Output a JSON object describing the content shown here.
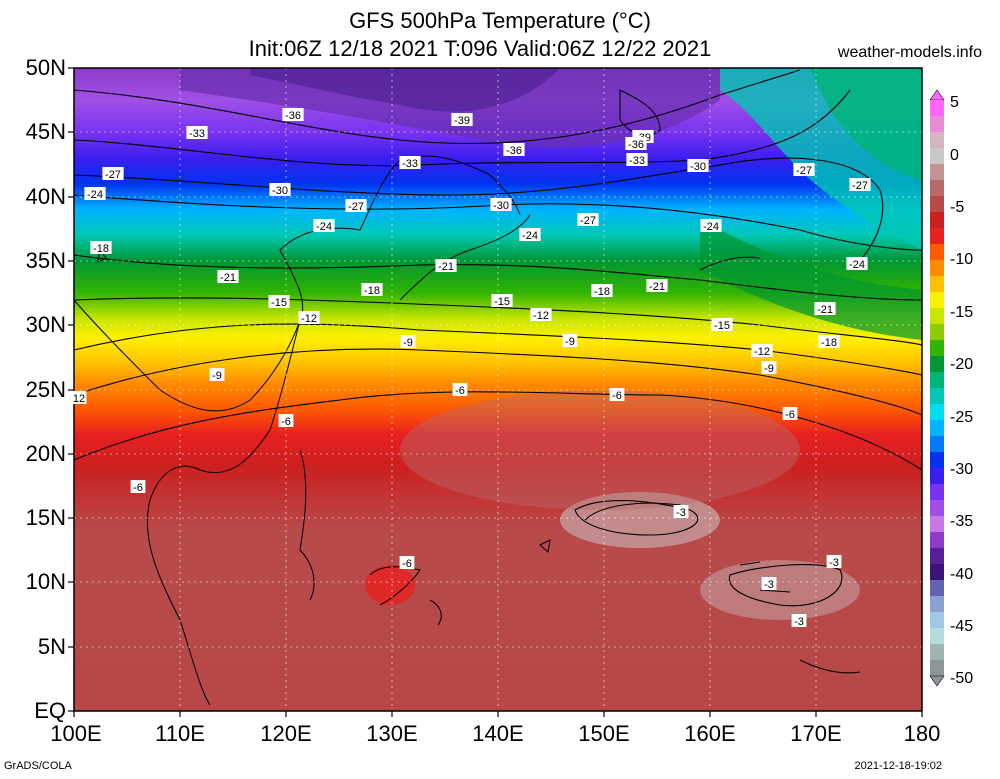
{
  "header": {
    "title": "GFS 500hPa Temperature (°C)",
    "subtitle": "Init:06Z 12/18 2021 T:096 Valid:06Z 12/22 2021",
    "site": "weather-models.info"
  },
  "footer": {
    "left": "GrADS/COLA",
    "right": "2021-12-18-19:02"
  },
  "map": {
    "region_lat": [
      "50N",
      "45N",
      "40N",
      "35N",
      "30N",
      "25N",
      "20N",
      "15N",
      "10N",
      "5N",
      "EQ"
    ],
    "region_lon": [
      "100E",
      "110E",
      "120E",
      "130E",
      "140E",
      "150E",
      "160E",
      "170E",
      "180"
    ]
  },
  "colorbar": {
    "ticks": [
      "5",
      "0",
      "-5",
      "-10",
      "-15",
      "-20",
      "-25",
      "-30",
      "-35",
      "-40",
      "-45",
      "-50"
    ],
    "colors": [
      "#ff66ff",
      "#e88ad8",
      "#d4b4c0",
      "#c8c8c8",
      "#c49494",
      "#b86a6a",
      "#b84a4a",
      "#cc2020",
      "#e82020",
      "#ff5a00",
      "#ff8c00",
      "#ffc000",
      "#fff000",
      "#c8e600",
      "#8ccc00",
      "#32b400",
      "#009632",
      "#00b478",
      "#00c8b4",
      "#00dcf0",
      "#00b4ff",
      "#0078ff",
      "#0032f0",
      "#3c1ef0",
      "#7832f0",
      "#a050e6",
      "#c878e6",
      "#8c3cc8",
      "#5a1e96",
      "#3c1478",
      "#6464b4",
      "#8ca0d2",
      "#a0c8e6",
      "#b4dcdc",
      "#a0b4b4",
      "#8c9696"
    ]
  },
  "contour_labels": [
    {
      "text": "-36"
    },
    {
      "text": "-39"
    },
    {
      "text": "-39"
    },
    {
      "text": "-36"
    },
    {
      "text": "-36"
    },
    {
      "text": "-33"
    },
    {
      "text": "-33"
    },
    {
      "text": "-33"
    },
    {
      "text": "-30"
    },
    {
      "text": "-30"
    },
    {
      "text": "-30"
    },
    {
      "text": "-27"
    },
    {
      "text": "-27"
    },
    {
      "text": "-27"
    },
    {
      "text": "-27"
    },
    {
      "text": "-27"
    },
    {
      "text": "-24"
    },
    {
      "text": "-24"
    },
    {
      "text": "-24"
    },
    {
      "text": "-24"
    },
    {
      "text": "-24"
    },
    {
      "text": "-21"
    },
    {
      "text": "-21"
    },
    {
      "text": "-21"
    },
    {
      "text": "-21"
    },
    {
      "text": "-18"
    },
    {
      "text": "-18"
    },
    {
      "text": "-18"
    },
    {
      "text": "-18"
    },
    {
      "text": "-15"
    },
    {
      "text": "-15"
    },
    {
      "text": "-15"
    },
    {
      "text": "-12"
    },
    {
      "text": "-12"
    },
    {
      "text": "-12"
    },
    {
      "text": "12"
    },
    {
      "text": "-9"
    },
    {
      "text": "-9"
    },
    {
      "text": "-9"
    },
    {
      "text": "-9"
    },
    {
      "text": "-6"
    },
    {
      "text": "-6"
    },
    {
      "text": "-6"
    },
    {
      "text": "-6"
    },
    {
      "text": "-6"
    },
    {
      "text": "-6"
    },
    {
      "text": "-3"
    },
    {
      "text": "-3"
    },
    {
      "text": "-3"
    },
    {
      "text": "-3"
    }
  ]
}
